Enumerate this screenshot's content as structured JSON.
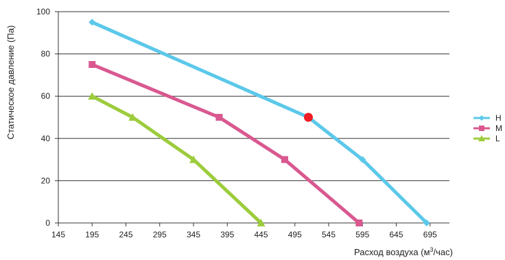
{
  "chart_data": {
    "type": "line",
    "title": "",
    "xlabel": "Расход воздуха (м",
    "xlabel_sup": "3",
    "xlabel_tail": "/час)",
    "ylabel": "Статическое давление (Па)",
    "xlim": [
      145,
      720
    ],
    "ylim": [
      0,
      100
    ],
    "x_ticks": [
      145,
      195,
      245,
      295,
      345,
      395,
      445,
      495,
      545,
      595,
      645,
      695
    ],
    "y_ticks": [
      0,
      20,
      40,
      60,
      80,
      100
    ],
    "grid": "horizontal",
    "legend_position": "right",
    "series": [
      {
        "name": "H",
        "color": "#5bc8ea",
        "marker": "diamond",
        "x": [
          195,
          515,
          595,
          690
        ],
        "y": [
          95,
          50,
          30,
          0
        ]
      },
      {
        "name": "M",
        "color": "#d9588f",
        "marker": "square",
        "x": [
          195,
          383,
          480,
          590
        ],
        "y": [
          75,
          50,
          30,
          0
        ]
      },
      {
        "name": "L",
        "color": "#9ccc3c",
        "marker": "triangle",
        "x": [
          195,
          255,
          345,
          445
        ],
        "y": [
          60,
          50,
          30,
          0
        ]
      }
    ],
    "highlight_point": {
      "x": 515,
      "y": 50,
      "color": "#ee1c25"
    }
  }
}
